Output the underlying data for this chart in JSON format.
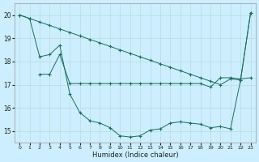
{
  "xlabel": "Humidex (Indice chaleur)",
  "bg_color": "#cceeff",
  "grid_color": "#b8ddd8",
  "line_color": "#1a6e60",
  "xlim": [
    -0.5,
    23.5
  ],
  "ylim": [
    14.5,
    20.5
  ],
  "yticks": [
    15,
    16,
    17,
    18,
    19,
    20
  ],
  "xticks": [
    0,
    1,
    2,
    3,
    4,
    5,
    6,
    7,
    8,
    9,
    10,
    11,
    12,
    13,
    14,
    15,
    16,
    17,
    18,
    19,
    20,
    21,
    22,
    23
  ],
  "line1_x": [
    0,
    1,
    2,
    3,
    4,
    5,
    6,
    7,
    8,
    9,
    10,
    11,
    12,
    13,
    14,
    15,
    16,
    17,
    18,
    19,
    20,
    21,
    22,
    23
  ],
  "line1_y": [
    20.0,
    19.85,
    19.7,
    19.55,
    19.4,
    19.25,
    19.1,
    18.95,
    18.8,
    18.65,
    18.5,
    18.35,
    18.2,
    18.05,
    17.9,
    17.75,
    17.6,
    17.45,
    17.3,
    17.15,
    17.0,
    17.25,
    17.2,
    20.1
  ],
  "line2_x": [
    2,
    3,
    4,
    5,
    6,
    7,
    8,
    9,
    10,
    11,
    12,
    13,
    14,
    15,
    16,
    17,
    18,
    19,
    20,
    21,
    22,
    23
  ],
  "line2_y": [
    17.45,
    17.45,
    18.3,
    17.05,
    17.05,
    17.05,
    17.05,
    17.05,
    17.05,
    17.05,
    17.05,
    17.05,
    17.05,
    17.05,
    17.05,
    17.05,
    17.05,
    16.9,
    17.3,
    17.3,
    17.25,
    17.3
  ],
  "line3_x": [
    0,
    1,
    2,
    3,
    4,
    5,
    6,
    7,
    8,
    9,
    10,
    11,
    12,
    13,
    14,
    15,
    16,
    17,
    18,
    19,
    20,
    21,
    22,
    23
  ],
  "line3_y": [
    20.0,
    19.85,
    18.2,
    18.3,
    18.7,
    16.6,
    15.8,
    15.45,
    15.35,
    15.15,
    14.8,
    14.75,
    14.8,
    15.05,
    15.1,
    15.35,
    15.4,
    15.35,
    15.3,
    15.15,
    15.2,
    15.1,
    17.2,
    20.1
  ]
}
